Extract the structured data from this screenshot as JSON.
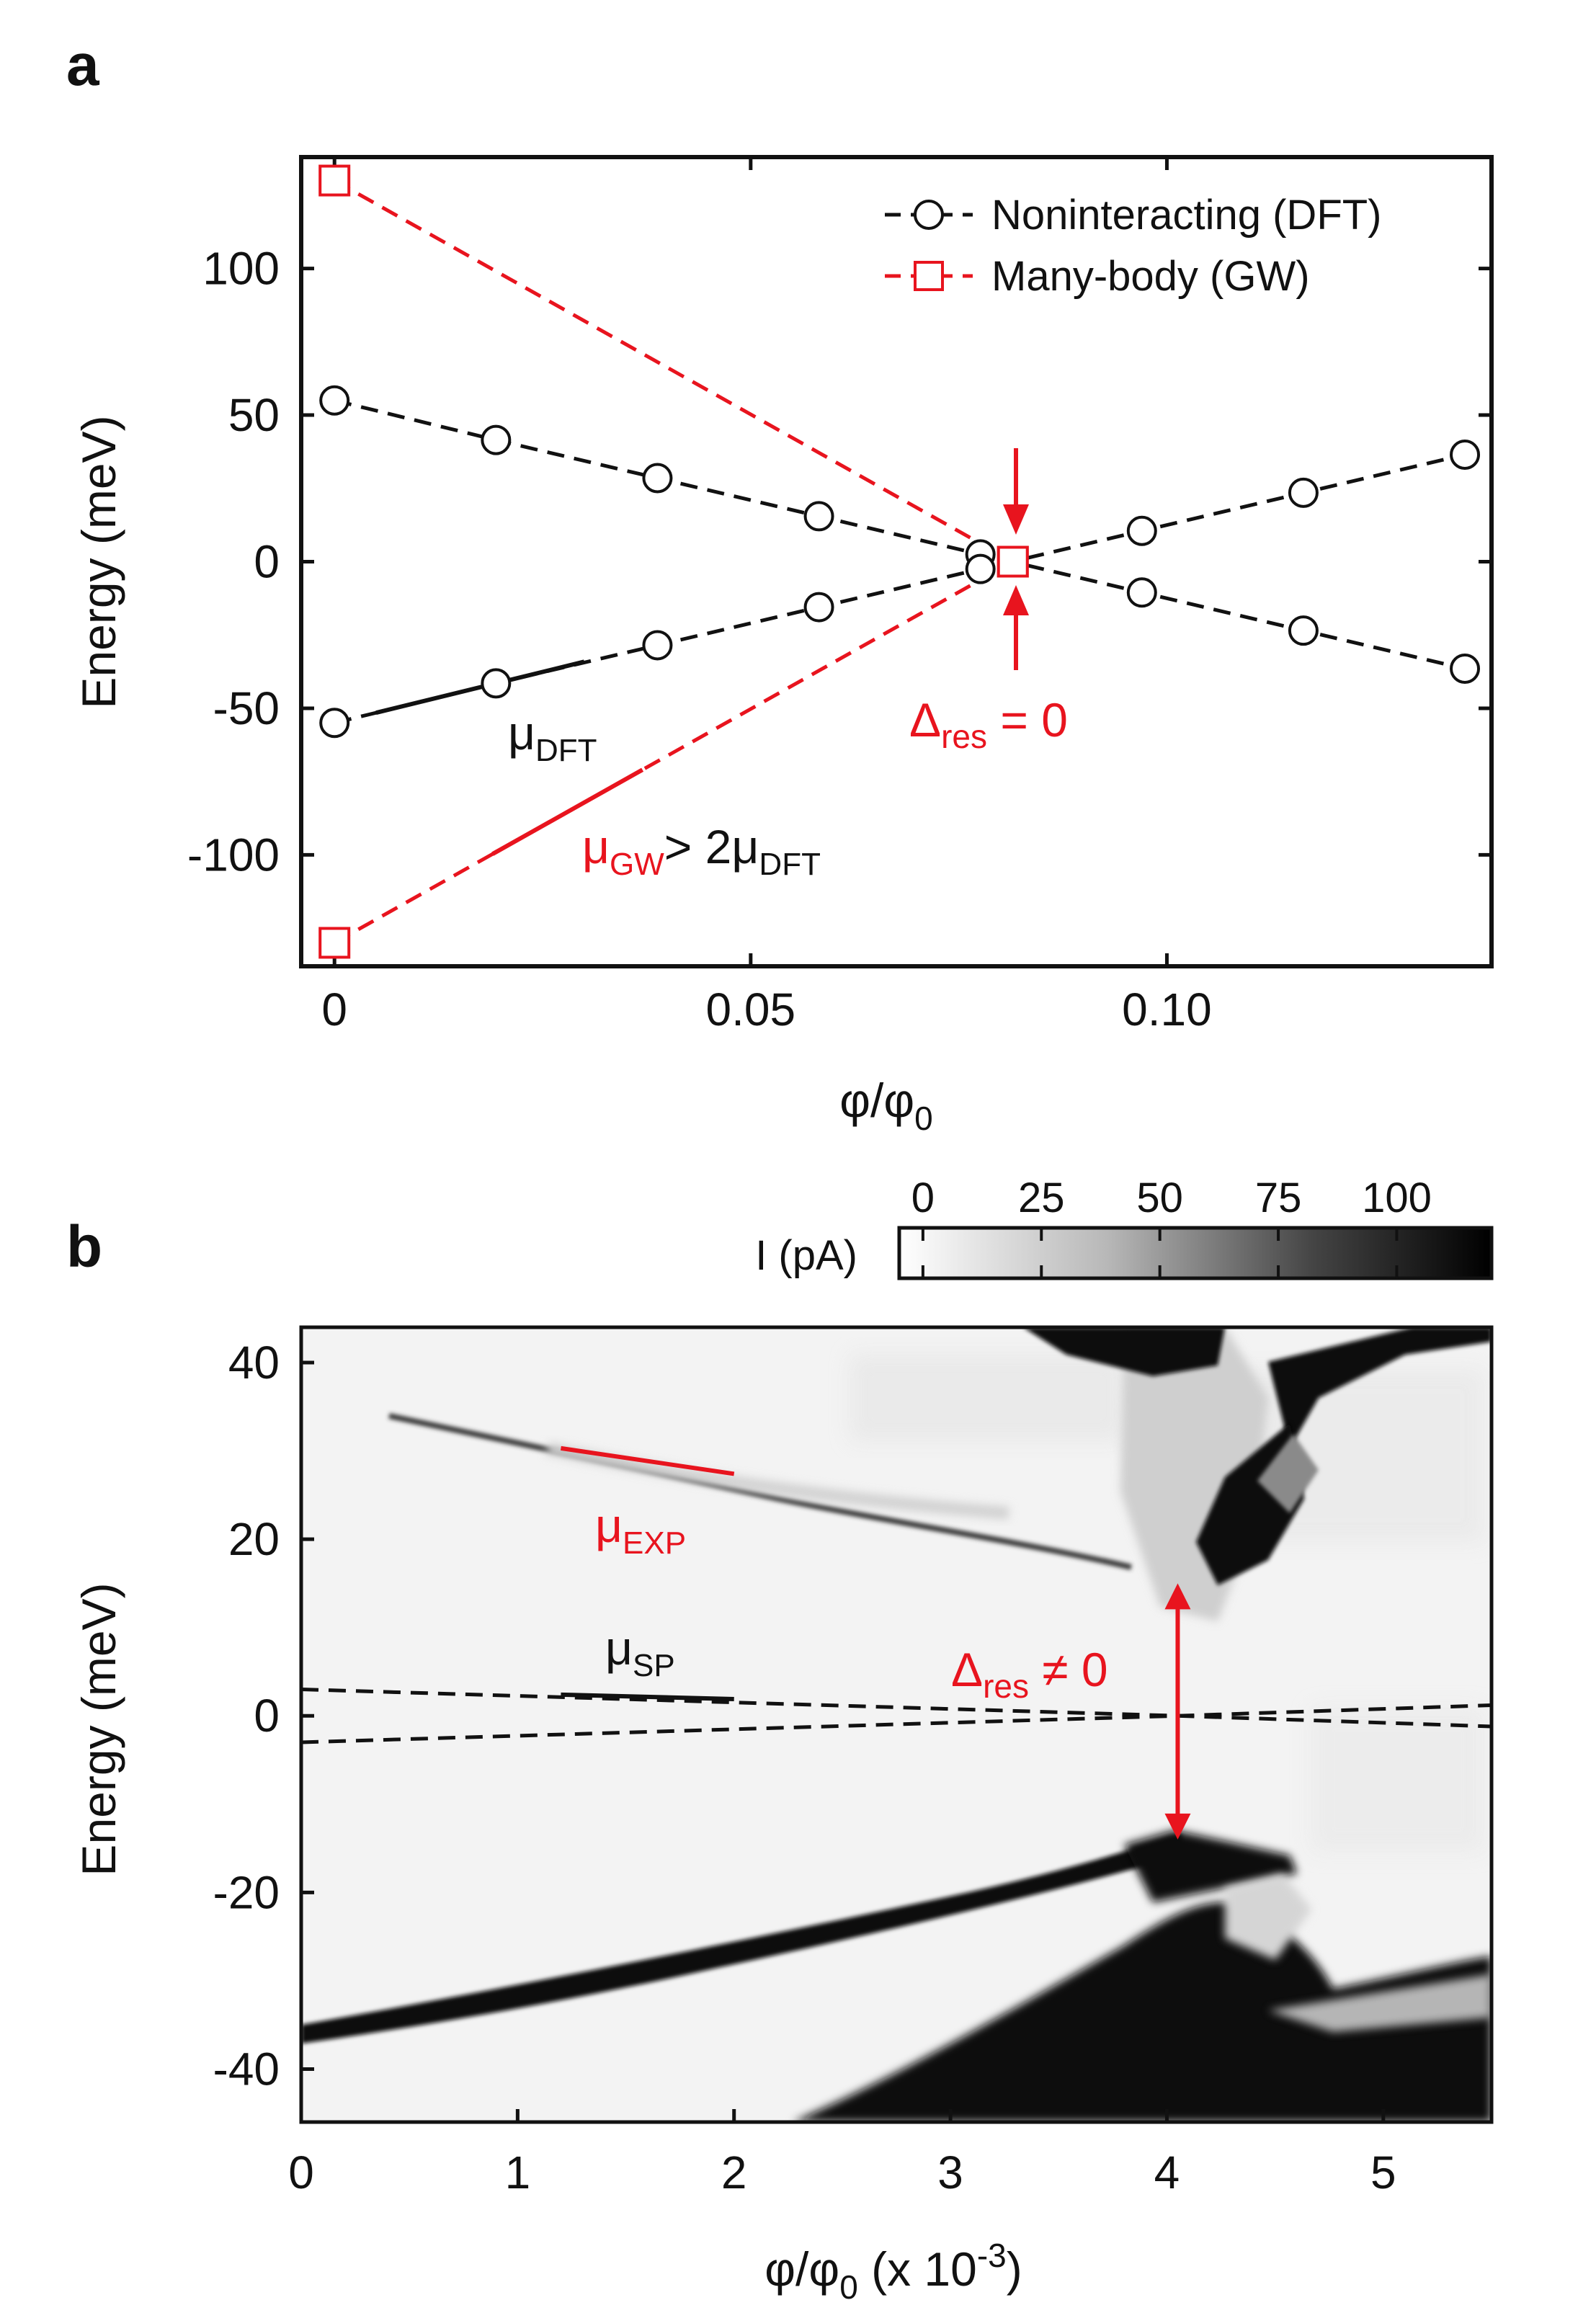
{
  "colors": {
    "red": "#e8141e",
    "black": "#111111"
  },
  "chart_data": [
    {
      "panel": "a",
      "type": "scatter",
      "xlabel": "φ/φ",
      "xlabel_sub": "0",
      "ylabel": "Energy (meV)",
      "xlim": [
        -0.004,
        0.139
      ],
      "ylim": [
        -138,
        138
      ],
      "xticks": [
        0,
        0.05,
        0.1
      ],
      "xtick_labels": [
        "0",
        "0.05",
        "0.10"
      ],
      "yticks": [
        100,
        50,
        0,
        -50,
        -100
      ],
      "ytick_labels": [
        "100",
        "50",
        "0",
        "-50",
        "-100"
      ],
      "legend": [
        {
          "label": "Noninteracting (DFT)",
          "marker": "circle",
          "color": "#111111"
        },
        {
          "label": "Many-body (GW)",
          "marker": "square",
          "color": "#e8141e"
        }
      ],
      "legend_position": "top-right",
      "series": [
        {
          "name": "DFT upper",
          "marker": "circle",
          "color": "#111111",
          "x": [
            0,
            0.0194,
            0.0388,
            0.0582,
            0.0776,
            0.097,
            0.1164,
            0.1358
          ],
          "y": [
            55,
            41.5,
            28.5,
            15.5,
            2.5,
            -10.5,
            -23.5,
            -36.5
          ]
        },
        {
          "name": "DFT lower",
          "marker": "circle",
          "color": "#111111",
          "x": [
            0,
            0.0194,
            0.0388,
            0.0582,
            0.0776,
            0.097,
            0.1164,
            0.1358
          ],
          "y": [
            -55,
            -41.5,
            -28.5,
            -15.5,
            -2.5,
            10.5,
            23.5,
            36.5
          ]
        },
        {
          "name": "GW upper",
          "marker": "square",
          "color": "#e8141e",
          "x": [
            0,
            0.0815
          ],
          "y": [
            130,
            0
          ]
        },
        {
          "name": "GW lower",
          "marker": "square",
          "color": "#e8141e",
          "x": [
            0,
            0.0815
          ],
          "y": [
            -130,
            0
          ]
        }
      ],
      "annotations": {
        "delta": "Δ",
        "delta_sub": "res",
        "delta_rest": " = 0",
        "mu": "μ",
        "mu_dft_sub": "DFT",
        "mu_gw_sub": "GW",
        "mu_gw_rest": "> 2μ"
      }
    },
    {
      "panel": "b",
      "type": "heatmap",
      "xlabel": "φ/φ",
      "xlabel_sub": "0",
      "xlabel_rest": " (x 10",
      "xlabel_sup": "-3",
      "xlabel_close": ")",
      "ylabel": "Energy (meV)",
      "xlim": [
        0,
        5.5
      ],
      "ylim": [
        -46,
        44
      ],
      "xticks": [
        0,
        1,
        2,
        3,
        4,
        5
      ],
      "xtick_labels": [
        "0",
        "1",
        "2",
        "3",
        "4",
        "5"
      ],
      "yticks": [
        40,
        20,
        0,
        -20,
        -40
      ],
      "ytick_labels": [
        "40",
        "20",
        "0",
        "-20",
        "-40"
      ],
      "colorbar": {
        "label": "I (pA)",
        "range": [
          -5,
          120
        ],
        "ticks": [
          0,
          25,
          50,
          75,
          100
        ],
        "tick_labels": [
          "0",
          "25",
          "50",
          "75",
          "100"
        ],
        "colormap": "white-to-black"
      },
      "dashed_lines": [
        {
          "x": [
            0,
            4.05,
            5.5
          ],
          "y": [
            3,
            0,
            1.2
          ]
        },
        {
          "x": [
            0,
            4.05,
            5.5
          ],
          "y": [
            -3,
            0,
            -1.2
          ]
        }
      ],
      "fits": {
        "mu_exp": {
          "x": [
            1.2,
            2.0
          ],
          "y": [
            30.3,
            27.4
          ]
        },
        "mu_sp": {
          "x": [
            1.2,
            2.0
          ],
          "y": [
            2.4,
            1.9
          ]
        }
      },
      "gap_arrow": {
        "x": 4.05,
        "y_from": -14,
        "y_to": 15
      },
      "annotations": {
        "mu": "μ",
        "mu_exp_sub": "EXP",
        "mu_sp_sub": "SP",
        "delta": "Δ",
        "delta_sub": "res",
        "delta_rest": " ≠ 0"
      }
    }
  ],
  "panel_labels": {
    "a": "a",
    "b": "b"
  }
}
